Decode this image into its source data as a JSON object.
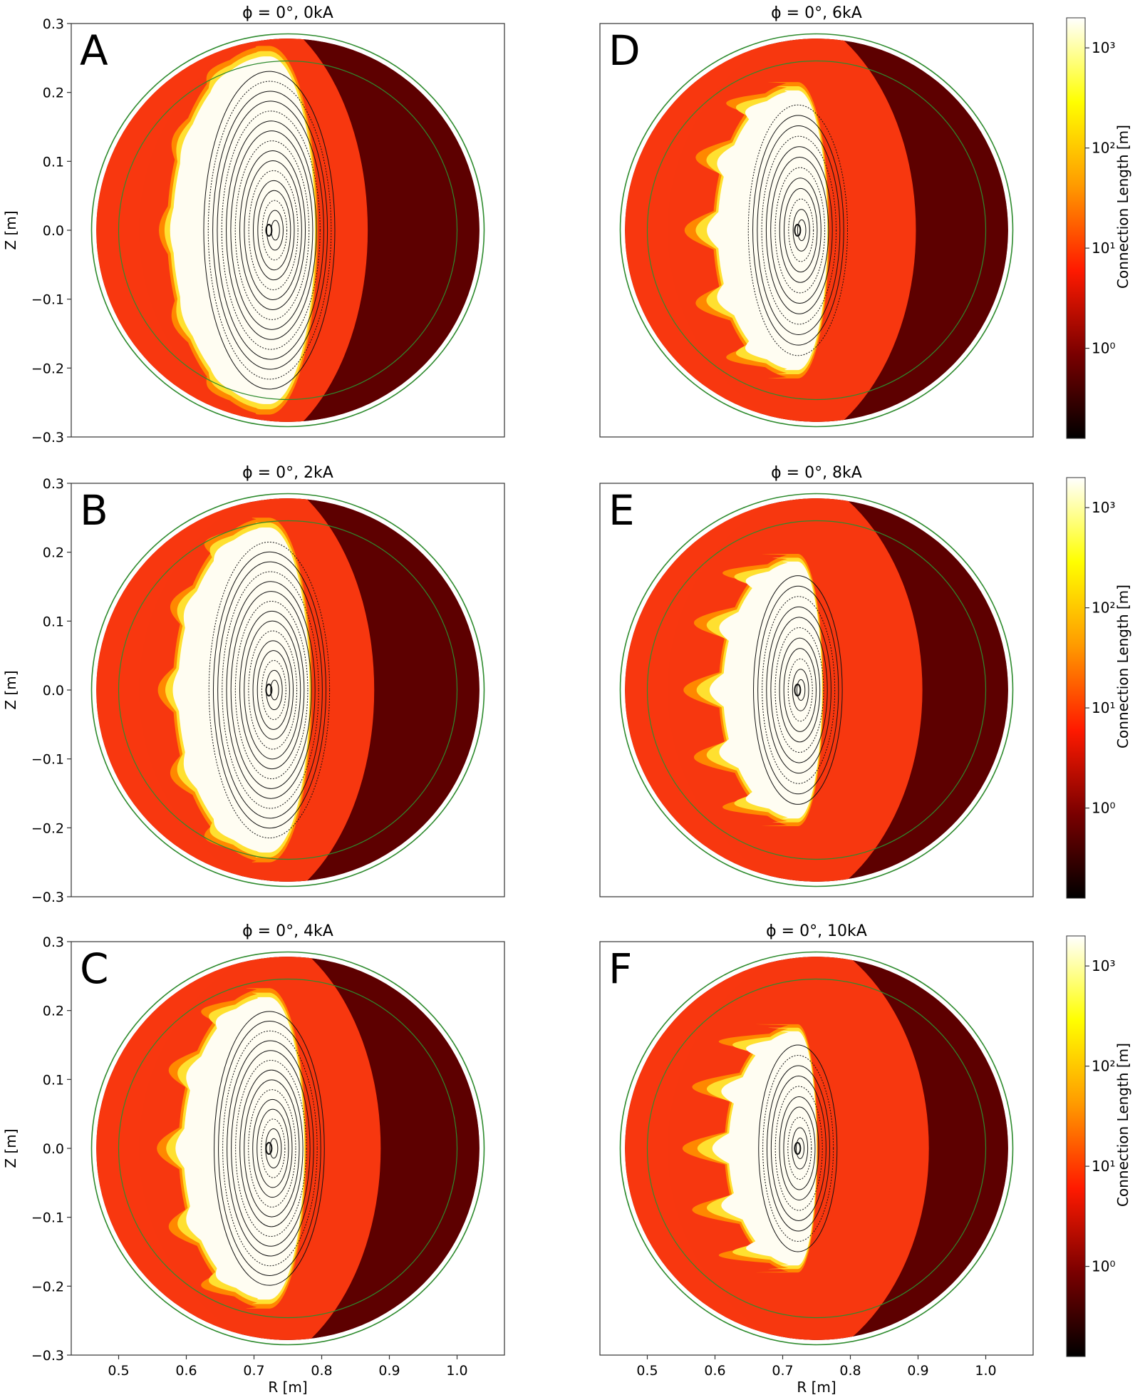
{
  "figure": {
    "colors": {
      "wall": "#2e8b2e",
      "dark_red": "#5a0000",
      "red": "#e0200a",
      "bright_red": "#ff3a10",
      "orange": "#ff8c00",
      "yellow": "#ffe030",
      "white_core": "#fffdf2",
      "contour": "#111111"
    }
  },
  "chart_data": [
    {
      "type": "heatmap",
      "panel": "A",
      "title": "ϕ = 0°,  0kA",
      "current_kA": 0,
      "xlabel": "",
      "ylabel": "Z [m]",
      "xlim": [
        0.43,
        1.07
      ],
      "ylim": [
        -0.3,
        0.3
      ],
      "xticks": [],
      "yticks": [
        "0.3",
        "0.2",
        "0.1",
        "0.0",
        "−0.1",
        "−0.2",
        "−0.3"
      ],
      "colorbar": null
    },
    {
      "type": "heatmap",
      "panel": "D",
      "title": "ϕ = 0°,  6kA",
      "current_kA": 6,
      "xlabel": "",
      "ylabel": "",
      "xlim": [
        0.43,
        1.07
      ],
      "ylim": [
        -0.3,
        0.3
      ],
      "xticks": [],
      "yticks": [],
      "colorbar": {
        "label": "Connection Length [m]",
        "scale": "log",
        "ticks": [
          "10⁰",
          "10¹",
          "10²",
          "10³"
        ]
      }
    },
    {
      "type": "heatmap",
      "panel": "B",
      "title": "ϕ = 0°,  2kA",
      "current_kA": 2,
      "xlabel": "",
      "ylabel": "Z [m]",
      "xlim": [
        0.43,
        1.07
      ],
      "ylim": [
        -0.3,
        0.3
      ],
      "xticks": [],
      "yticks": [
        "0.3",
        "0.2",
        "0.1",
        "0.0",
        "−0.1",
        "−0.2",
        "−0.3"
      ],
      "colorbar": null
    },
    {
      "type": "heatmap",
      "panel": "E",
      "title": "ϕ = 0°,  8kA",
      "current_kA": 8,
      "xlabel": "",
      "ylabel": "",
      "xlim": [
        0.43,
        1.07
      ],
      "ylim": [
        -0.3,
        0.3
      ],
      "xticks": [],
      "yticks": [],
      "colorbar": {
        "label": "Connection Length [m]",
        "scale": "log",
        "ticks": [
          "10⁰",
          "10¹",
          "10²",
          "10³"
        ]
      }
    },
    {
      "type": "heatmap",
      "panel": "C",
      "title": "ϕ = 0°,  4kA",
      "current_kA": 4,
      "xlabel": "R [m]",
      "ylabel": "Z [m]",
      "xlim": [
        0.43,
        1.07
      ],
      "ylim": [
        -0.3,
        0.3
      ],
      "xticks": [
        "0.5",
        "0.6",
        "0.7",
        "0.8",
        "0.9",
        "1.0"
      ],
      "yticks": [
        "0.3",
        "0.2",
        "0.1",
        "0.0",
        "−0.1",
        "−0.2",
        "−0.3"
      ],
      "colorbar": null
    },
    {
      "type": "heatmap",
      "panel": "F",
      "title": "ϕ = 0°,  10kA",
      "current_kA": 10,
      "xlabel": "R [m]",
      "ylabel": "",
      "xlim": [
        0.43,
        1.07
      ],
      "ylim": [
        -0.3,
        0.3
      ],
      "xticks": [
        "0.5",
        "0.6",
        "0.7",
        "0.8",
        "0.9",
        "1.0"
      ],
      "yticks": [],
      "colorbar": {
        "label": "Connection Length [m]",
        "scale": "log",
        "ticks": [
          "10⁰",
          "10¹",
          "10²",
          "10³"
        ]
      }
    }
  ]
}
